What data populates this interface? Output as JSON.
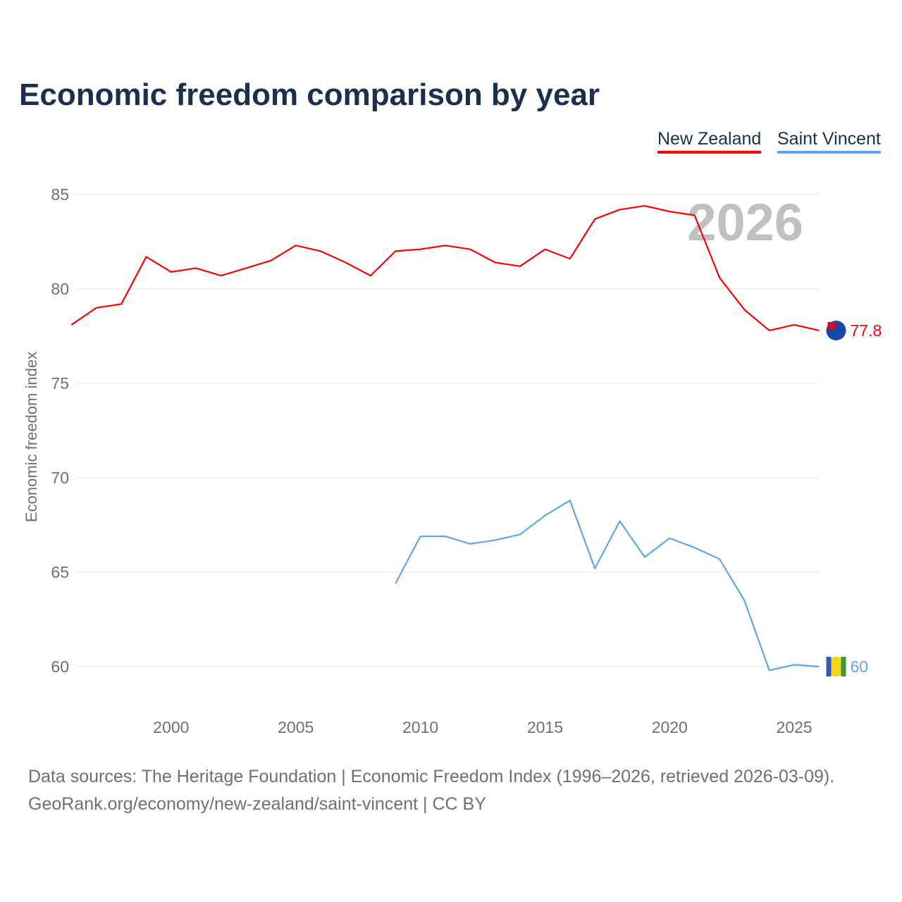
{
  "chart_data": {
    "type": "line",
    "title": "Economic freedom comparison by year",
    "xlabel": "",
    "ylabel": "Economic freedom index",
    "xlim": [
      1996,
      2026
    ],
    "ylim": [
      58.5,
      85
    ],
    "xticks": [
      2000,
      2005,
      2010,
      2015,
      2020,
      2025
    ],
    "yticks": [
      60,
      65,
      70,
      75,
      80,
      85
    ],
    "grid": true,
    "legend_placement": "top-right",
    "year_annotation": "2026",
    "series": [
      {
        "name": "New Zealand",
        "color": "#ff0000",
        "end_label": "77.8",
        "x": [
          1996,
          1997,
          1998,
          1999,
          2000,
          2001,
          2002,
          2003,
          2004,
          2005,
          2006,
          2007,
          2008,
          2009,
          2010,
          2011,
          2012,
          2013,
          2014,
          2015,
          2016,
          2017,
          2018,
          2019,
          2020,
          2021,
          2022,
          2023,
          2024,
          2025,
          2026
        ],
        "values": [
          78.1,
          79.0,
          79.2,
          81.7,
          80.9,
          81.1,
          80.7,
          81.1,
          81.5,
          82.3,
          82.0,
          81.4,
          80.7,
          82.0,
          82.1,
          82.3,
          82.1,
          81.4,
          81.2,
          82.1,
          81.6,
          83.7,
          84.2,
          84.4,
          84.1,
          83.9,
          80.6,
          78.9,
          77.8,
          78.1,
          77.8
        ]
      },
      {
        "name": "Saint Vincent",
        "color": "#5ea6e8",
        "end_label": "60",
        "x": [
          2009,
          2010,
          2011,
          2012,
          2013,
          2014,
          2015,
          2016,
          2017,
          2018,
          2019,
          2020,
          2021,
          2022,
          2023,
          2024,
          2025,
          2026
        ],
        "values": [
          64.4,
          66.9,
          66.9,
          66.5,
          66.7,
          67.0,
          68.0,
          68.8,
          65.2,
          67.7,
          65.8,
          66.8,
          66.3,
          65.7,
          63.5,
          59.8,
          60.1,
          60.0
        ]
      }
    ]
  },
  "footer": {
    "line1": "Data sources: The Heritage Foundation | Economic Freedom Index (1996–2026, retrieved 2026-03-09).",
    "line2": "GeoRank.org/economy/new-zealand/saint-vincent | CC BY"
  }
}
